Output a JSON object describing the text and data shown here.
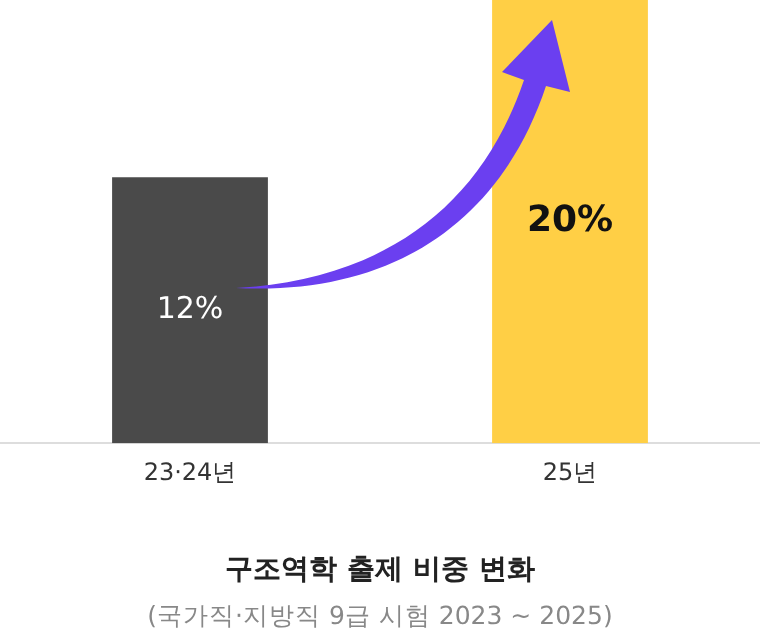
{
  "chart_data": {
    "type": "bar",
    "title": "구조역학 출제 비중 변화",
    "subtitle": "(국가직·지방직 9급 시험 2023 ~ 2025)",
    "categories": [
      "23·24년",
      "25년"
    ],
    "values": [
      12,
      20
    ],
    "colors": [
      "#4a4a4a",
      "#ffcf45"
    ],
    "value_labels": [
      "12%",
      "20%"
    ],
    "grid": false,
    "legend": false
  }
}
